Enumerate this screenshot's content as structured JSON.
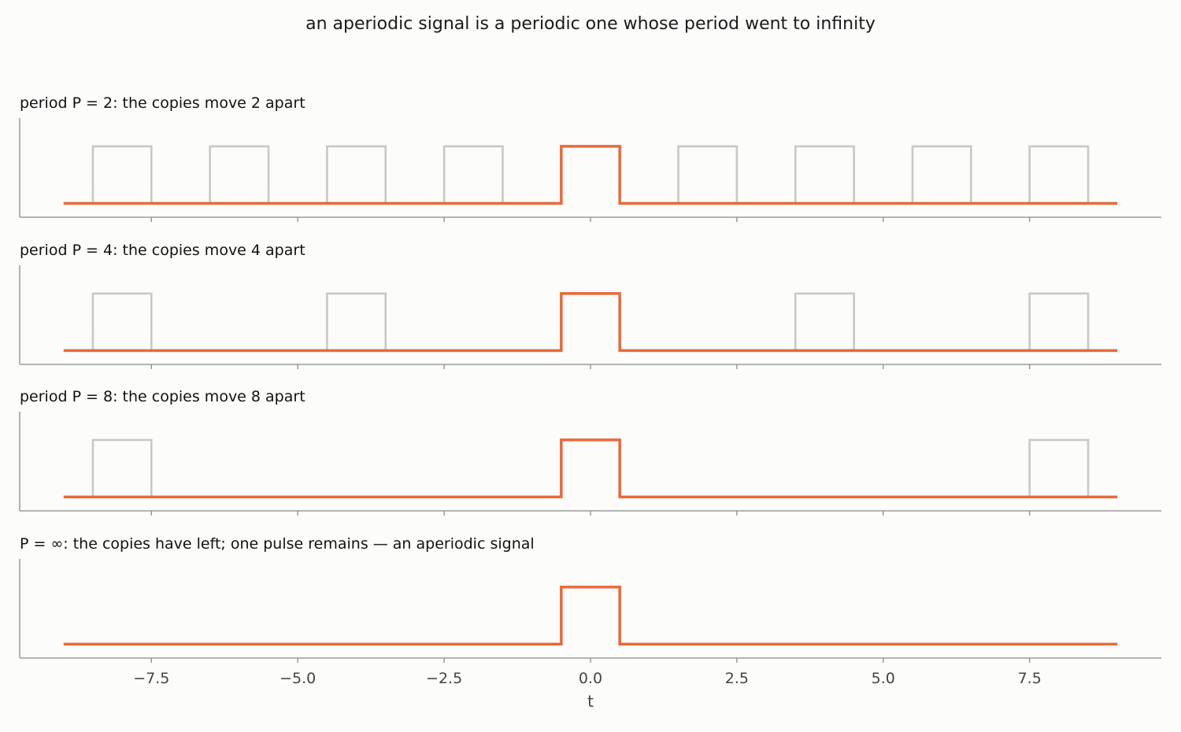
{
  "chart_data": {
    "type": "line",
    "title": "an aperiodic signal is a periodic one whose period went to infinity",
    "xlabel": "t",
    "x_range": [
      -9.75,
      9.75
    ],
    "x_ticks": [
      -7.5,
      -5.0,
      -2.5,
      0.0,
      2.5,
      5.0,
      7.5
    ],
    "x_tick_labels": [
      "−7.5",
      "−5.0",
      "−2.5",
      "0.0",
      "2.5",
      "5.0",
      "7.5"
    ],
    "signal_span": [
      -9,
      9
    ],
    "pulse": {
      "start": -0.5,
      "end": 0.5,
      "low": 0,
      "high": 1
    },
    "colors": {
      "main": "#e8693a",
      "copies": "#c8c8c6",
      "axis": "#8a8a8a",
      "background": "#fcfcfa"
    },
    "grid": false,
    "panels": [
      {
        "title": "period P = 2:  the copies move 2 apart",
        "period": 2,
        "copy_centers": [
          -8,
          -6,
          -4,
          -2,
          2,
          4,
          6,
          8
        ]
      },
      {
        "title": "period P = 4:  the copies move 4 apart",
        "period": 4,
        "copy_centers": [
          -8,
          -4,
          4,
          8
        ]
      },
      {
        "title": "period P = 8:  the copies move 8 apart",
        "period": 8,
        "copy_centers": [
          -8,
          8
        ]
      },
      {
        "title": "P = ∞:  the copies have left; one pulse remains — an aperiodic signal",
        "period": "∞",
        "copy_centers": []
      }
    ]
  }
}
